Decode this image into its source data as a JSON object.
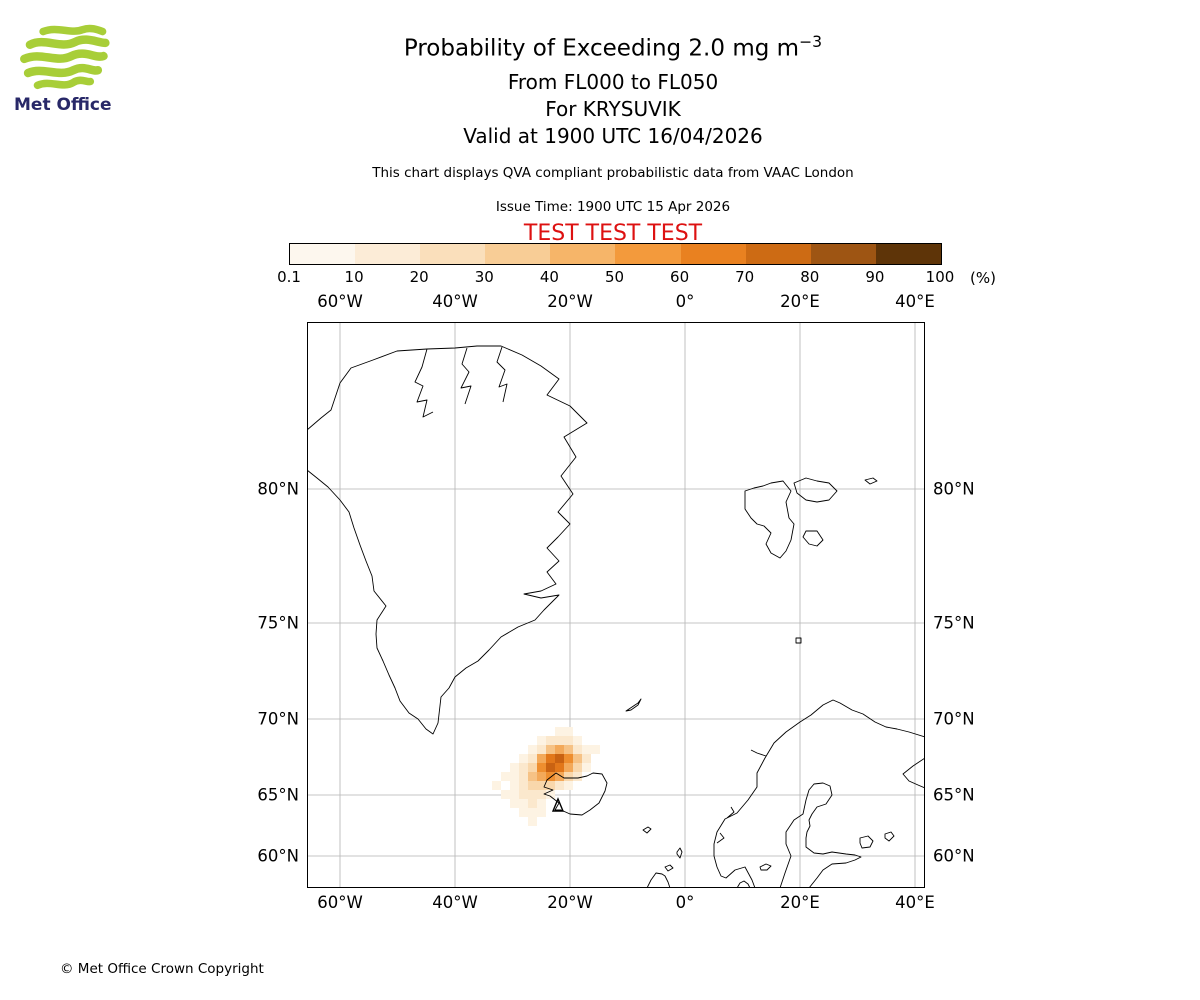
{
  "logo": {
    "text": "Met Office"
  },
  "header": {
    "title_main": "Probability of Exceeding 2.0 mg m",
    "title_sup": "−3",
    "subtitle1": "From FL000 to FL050",
    "subtitle2": "For KRYSUVIK",
    "subtitle3": "Valid at 1900 UTC 16/04/2026",
    "description": "This chart displays QVA compliant probabilistic data from VAAC London",
    "issue_time": "Issue Time: 1900 UTC 15 Apr 2026",
    "test_banner": "TEST TEST TEST",
    "test_color": "#dd1111"
  },
  "colorbar": {
    "segment_colors": [
      "#fdf7ee",
      "#fcecd7",
      "#fadfbb",
      "#f8cd96",
      "#f6b569",
      "#f39a3c",
      "#e98120",
      "#cd6b14",
      "#9e5513",
      "#5e3408"
    ],
    "tick_labels": [
      "0.1",
      "10",
      "20",
      "30",
      "40",
      "50",
      "60",
      "70",
      "80",
      "90",
      "100"
    ],
    "unit_label": "(%)"
  },
  "map": {
    "lon_labels": [
      "60°W",
      "40°W",
      "20°W",
      "0°",
      "20°E",
      "40°E"
    ],
    "lat_labels": [
      "80°N",
      "75°N",
      "70°N",
      "65°N",
      "60°N"
    ]
  },
  "chart_data": {
    "type": "heatmap",
    "title": "Probability of Exceeding 2.0 mg m−3",
    "layer": "FL000 to FL050",
    "volcano": "KRYSUVIK",
    "valid_time": "1900 UTC 16/04/2026",
    "issue_time": "1900 UTC 15 Apr 2026",
    "source": "VAAC London",
    "probability_scale_percent": [
      0.1,
      10,
      20,
      30,
      40,
      50,
      60,
      70,
      80,
      90,
      100
    ],
    "plume_colors": [
      "#fdf3e3",
      "#fbe8cd",
      "#f9d7ab",
      "#f6c285",
      "#f3a95a",
      "#ee8e2f",
      "#e2771a",
      "#c96212"
    ],
    "plume_cells": [
      [
        248,
        405,
        0
      ],
      [
        257,
        405,
        0
      ],
      [
        230,
        414,
        0
      ],
      [
        239,
        414,
        1
      ],
      [
        248,
        414,
        1
      ],
      [
        257,
        414,
        1
      ],
      [
        266,
        414,
        0
      ],
      [
        221,
        423,
        0
      ],
      [
        230,
        423,
        1
      ],
      [
        239,
        423,
        3
      ],
      [
        248,
        423,
        4
      ],
      [
        257,
        423,
        3
      ],
      [
        266,
        423,
        1
      ],
      [
        275,
        423,
        0
      ],
      [
        284,
        423,
        0
      ],
      [
        212,
        432,
        0
      ],
      [
        221,
        432,
        1
      ],
      [
        230,
        432,
        4
      ],
      [
        239,
        432,
        6
      ],
      [
        248,
        432,
        7
      ],
      [
        257,
        432,
        5
      ],
      [
        266,
        432,
        3
      ],
      [
        275,
        432,
        1
      ],
      [
        203,
        441,
        0
      ],
      [
        212,
        441,
        1
      ],
      [
        221,
        441,
        2
      ],
      [
        230,
        441,
        5
      ],
      [
        239,
        441,
        7
      ],
      [
        248,
        441,
        6
      ],
      [
        257,
        441,
        4
      ],
      [
        266,
        441,
        2
      ],
      [
        275,
        441,
        0
      ],
      [
        194,
        450,
        0
      ],
      [
        203,
        450,
        0
      ],
      [
        212,
        450,
        1
      ],
      [
        221,
        450,
        3
      ],
      [
        230,
        450,
        4
      ],
      [
        239,
        450,
        5
      ],
      [
        248,
        450,
        4
      ],
      [
        257,
        450,
        2
      ],
      [
        266,
        450,
        1
      ],
      [
        185,
        459,
        0
      ],
      [
        203,
        459,
        0
      ],
      [
        212,
        459,
        1
      ],
      [
        221,
        459,
        2
      ],
      [
        230,
        459,
        2
      ],
      [
        239,
        459,
        2
      ],
      [
        248,
        459,
        1
      ],
      [
        257,
        459,
        0
      ],
      [
        194,
        468,
        0
      ],
      [
        203,
        468,
        0
      ],
      [
        212,
        468,
        1
      ],
      [
        221,
        468,
        1
      ],
      [
        230,
        468,
        1
      ],
      [
        239,
        468,
        0
      ],
      [
        203,
        477,
        0
      ],
      [
        212,
        477,
        0
      ],
      [
        221,
        477,
        1
      ],
      [
        230,
        477,
        0
      ],
      [
        212,
        486,
        0
      ],
      [
        221,
        486,
        0
      ],
      [
        230,
        486,
        0
      ],
      [
        221,
        495,
        0
      ]
    ]
  },
  "footer": {
    "copyright": "© Met Office Crown Copyright"
  }
}
